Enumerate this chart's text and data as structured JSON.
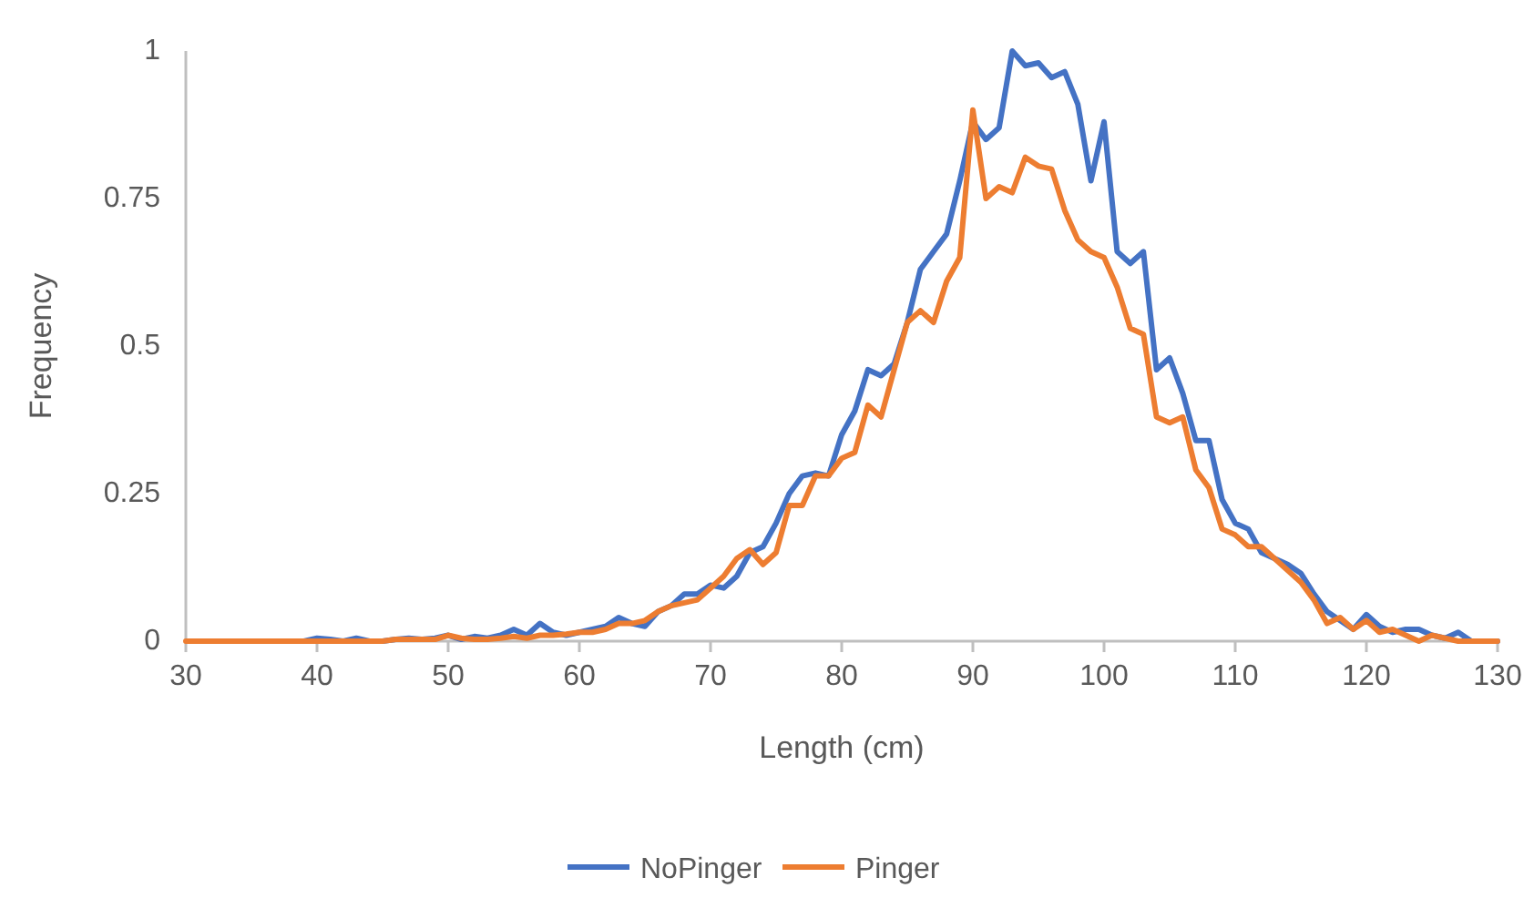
{
  "chart_data": {
    "type": "line",
    "xlabel": "Length (cm)",
    "ylabel": "Frequency",
    "x": [
      30,
      31,
      32,
      33,
      34,
      35,
      36,
      37,
      38,
      39,
      40,
      41,
      42,
      43,
      44,
      45,
      46,
      47,
      48,
      49,
      50,
      51,
      52,
      53,
      54,
      55,
      56,
      57,
      58,
      59,
      60,
      61,
      62,
      63,
      64,
      65,
      66,
      67,
      68,
      69,
      70,
      71,
      72,
      73,
      74,
      75,
      76,
      77,
      78,
      79,
      80,
      81,
      82,
      83,
      84,
      85,
      86,
      87,
      88,
      89,
      90,
      91,
      92,
      93,
      94,
      95,
      96,
      97,
      98,
      99,
      100,
      101,
      102,
      103,
      104,
      105,
      106,
      107,
      108,
      109,
      110,
      111,
      112,
      113,
      114,
      115,
      116,
      117,
      118,
      119,
      120,
      121,
      122,
      123,
      124,
      125,
      126,
      127,
      128,
      129,
      130
    ],
    "series": [
      {
        "name": "NoPinger",
        "color": "#4472c4",
        "values": [
          null,
          null,
          null,
          null,
          null,
          null,
          null,
          null,
          0,
          0,
          0.005,
          0.003,
          0,
          0.005,
          0,
          0,
          0.003,
          0.005,
          0.003,
          0.005,
          0.01,
          0.003,
          0.008,
          0.005,
          0.01,
          0.02,
          0.01,
          0.03,
          0.015,
          0.01,
          0.015,
          0.02,
          0.025,
          0.04,
          0.03,
          0.025,
          0.05,
          0.06,
          0.08,
          0.08,
          0.095,
          0.09,
          0.11,
          0.15,
          0.16,
          0.2,
          0.25,
          0.28,
          0.285,
          0.28,
          0.35,
          0.39,
          0.46,
          0.45,
          0.47,
          0.54,
          0.63,
          0.66,
          0.69,
          0.78,
          0.88,
          0.85,
          0.87,
          1,
          0.975,
          0.98,
          0.955,
          0.965,
          0.91,
          0.78,
          0.88,
          0.66,
          0.64,
          0.66,
          0.46,
          0.48,
          0.42,
          0.34,
          0.34,
          0.24,
          0.2,
          0.19,
          0.15,
          0.14,
          0.13,
          0.115,
          0.08,
          0.05,
          0.035,
          0.02,
          0.045,
          0.025,
          0.015,
          0.02,
          0.02,
          0.01,
          0.005,
          0.015,
          0,
          0,
          0
        ]
      },
      {
        "name": "Pinger",
        "color": "#ed7d31",
        "values": [
          0,
          0,
          0,
          0,
          0,
          0,
          0,
          0,
          0,
          0,
          0,
          0,
          0,
          0,
          0,
          0,
          0.003,
          0.003,
          0.003,
          0.003,
          0.01,
          0.005,
          0.003,
          0.003,
          0.005,
          0.008,
          0.005,
          0.01,
          0.01,
          0.012,
          0.015,
          0.015,
          0.02,
          0.03,
          0.03,
          0.035,
          0.05,
          0.06,
          0.065,
          0.07,
          0.09,
          0.11,
          0.14,
          0.155,
          0.13,
          0.15,
          0.23,
          0.23,
          0.28,
          0.28,
          0.31,
          0.32,
          0.4,
          0.38,
          0.46,
          0.54,
          0.56,
          0.54,
          0.61,
          0.65,
          0.9,
          0.75,
          0.77,
          0.76,
          0.82,
          0.805,
          0.8,
          0.73,
          0.68,
          0.66,
          0.65,
          0.6,
          0.53,
          0.52,
          0.38,
          0.37,
          0.38,
          0.29,
          0.26,
          0.19,
          0.18,
          0.16,
          0.16,
          0.14,
          0.12,
          0.1,
          0.07,
          0.03,
          0.04,
          0.02,
          0.035,
          0.015,
          0.02,
          0.01,
          0,
          0.01,
          0.005,
          0,
          0,
          0,
          0
        ]
      }
    ],
    "xlim": [
      30,
      130
    ],
    "xticks": [
      30,
      40,
      50,
      60,
      70,
      80,
      90,
      100,
      110,
      120,
      130
    ],
    "ylim": [
      0,
      1
    ],
    "yticks": [
      0,
      0.25,
      0.5,
      0.75,
      1
    ],
    "grid": false,
    "legend": "bottom"
  }
}
